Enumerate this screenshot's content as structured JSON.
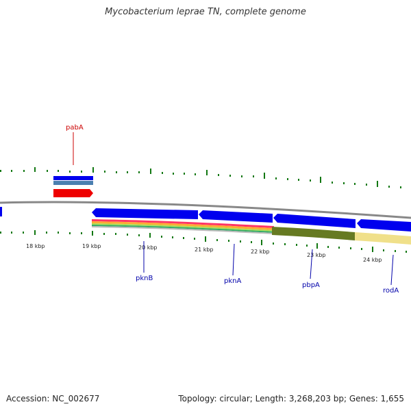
{
  "title": "Mycobacterium leprae TN, complete genome",
  "accession": "Accession: NC_002677",
  "summary": "Topology: circular; Length: 3,268,203 bp; Genes: 1,655",
  "colors": {
    "cds_forward": "#0000ee",
    "cds_reverse": "#0000ee",
    "gene_blue_gray": "#4a7fb0",
    "red_feature": "#ee0000",
    "backbone": "#888888",
    "tick": "#117711",
    "label_red": "#cc0000",
    "label_blue": "#0000aa",
    "olive": "#667a22",
    "khaki": "#f0e08a"
  },
  "ticks": [
    {
      "kbp": 18,
      "label": "18 kbp"
    },
    {
      "kbp": 19,
      "label": "19 kbp"
    },
    {
      "kbp": 20,
      "label": "20 kbp"
    },
    {
      "kbp": 21,
      "label": "21 kbp"
    },
    {
      "kbp": 22,
      "label": "22 kbp"
    },
    {
      "kbp": 23,
      "label": "23 kbp"
    },
    {
      "kbp": 24,
      "label": "24 kbp"
    }
  ],
  "genes": [
    {
      "name": "pabA",
      "color": "red"
    },
    {
      "name": "pknB",
      "color": "blue"
    },
    {
      "name": "pknA",
      "color": "blue"
    },
    {
      "name": "pbpA",
      "color": "blue"
    },
    {
      "name": "rodA",
      "color": "blue"
    }
  ]
}
